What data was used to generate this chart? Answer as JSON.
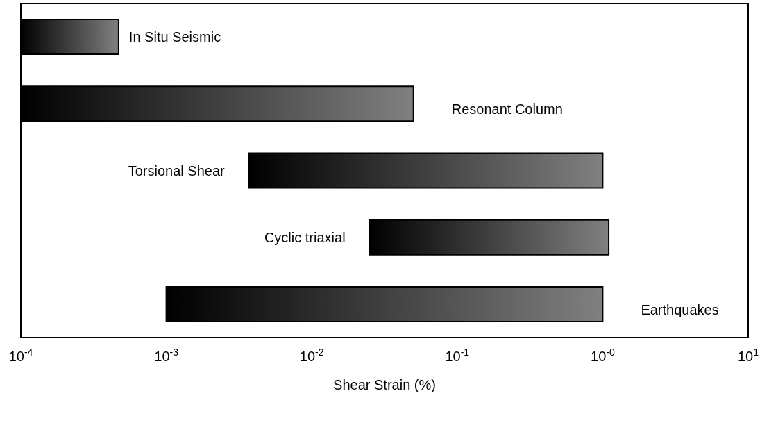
{
  "chart_data": {
    "type": "bar",
    "orientation": "horizontal",
    "xlabel": "Shear Strain (%)",
    "categories": [
      "In Situ Seismic",
      "Resonant Column",
      "Torsional Shear",
      "Cyclic triaxial",
      "Earthquakes"
    ],
    "base": [
      0.0001,
      0.0001,
      0.0037,
      0.025,
      0.001
    ],
    "values": [
      0.00037,
      0.0499,
      0.9963,
      1.075,
      0.999
    ],
    "color": "#808080",
    "log": "x",
    "xlim": [
      0.0001,
      10
    ],
    "xticks": [
      {
        "value": 0.0001,
        "label": "10$^{-4}$"
      },
      {
        "value": 0.001,
        "label": "10$^{-3}$"
      },
      {
        "value": 0.01,
        "label": "10$^{-2}$"
      },
      {
        "value": 0.1,
        "label": "10$^{-1}$"
      },
      {
        "value": 1,
        "label": "10$^{-0}$"
      },
      {
        "value": 10,
        "label": "10$^{1}$"
      }
    ],
    "tick_labels": "x",
    "grid": false
  }
}
